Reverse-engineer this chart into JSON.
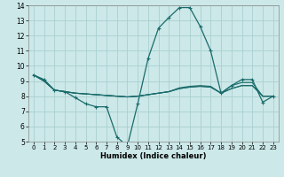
{
  "xlabel": "Humidex (Indice chaleur)",
  "bg_color": "#cce8e8",
  "grid_color": "#aacfcf",
  "line_color": "#1a6b6b",
  "xlim": [
    -0.5,
    23.5
  ],
  "ylim": [
    5,
    14
  ],
  "xticks": [
    0,
    1,
    2,
    3,
    4,
    5,
    6,
    7,
    8,
    9,
    10,
    11,
    12,
    13,
    14,
    15,
    16,
    17,
    18,
    19,
    20,
    21,
    22,
    23
  ],
  "yticks": [
    5,
    6,
    7,
    8,
    9,
    10,
    11,
    12,
    13,
    14
  ],
  "lines": [
    {
      "x": [
        0,
        1,
        2,
        3,
        4,
        5,
        6,
        7,
        8,
        9,
        10,
        11,
        12,
        13,
        14,
        15,
        16,
        17,
        18,
        19,
        20,
        21,
        22,
        23
      ],
      "y": [
        9.4,
        9.1,
        8.4,
        8.3,
        7.9,
        7.5,
        7.3,
        7.3,
        5.3,
        4.7,
        7.5,
        10.5,
        12.5,
        13.2,
        13.85,
        13.85,
        12.6,
        11.0,
        8.2,
        8.7,
        9.1,
        9.1,
        7.6,
        8.0
      ],
      "marker": true
    },
    {
      "x": [
        0,
        1,
        2,
        3,
        4,
        5,
        6,
        7,
        8,
        9,
        10,
        11,
        12,
        13,
        14,
        15,
        16,
        17,
        18,
        19,
        20,
        21,
        22,
        23
      ],
      "y": [
        9.4,
        9.0,
        8.4,
        8.3,
        8.2,
        8.15,
        8.1,
        8.05,
        8.0,
        7.95,
        8.0,
        8.1,
        8.2,
        8.3,
        8.5,
        8.6,
        8.65,
        8.6,
        8.2,
        8.5,
        8.7,
        8.7,
        8.0,
        8.0
      ],
      "marker": false
    },
    {
      "x": [
        0,
        1,
        2,
        3,
        4,
        5,
        6,
        7,
        8,
        9,
        10,
        11,
        12,
        13,
        14,
        15,
        16,
        17,
        18,
        19,
        20,
        21,
        22,
        23
      ],
      "y": [
        9.4,
        9.0,
        8.4,
        8.3,
        8.2,
        8.15,
        8.1,
        8.05,
        8.0,
        7.95,
        8.0,
        8.1,
        8.2,
        8.3,
        8.55,
        8.65,
        8.7,
        8.65,
        8.2,
        8.7,
        8.9,
        8.9,
        8.0,
        8.0
      ],
      "marker": false
    },
    {
      "x": [
        0,
        1,
        2,
        3,
        4,
        5,
        6,
        7,
        8,
        9,
        10,
        11,
        12,
        13,
        14,
        15,
        16,
        17,
        18,
        19,
        20,
        21,
        22,
        23
      ],
      "y": [
        9.4,
        9.0,
        8.4,
        8.3,
        8.2,
        8.15,
        8.1,
        8.05,
        8.0,
        7.95,
        8.0,
        8.1,
        8.2,
        8.3,
        8.5,
        8.6,
        8.65,
        8.6,
        8.2,
        8.5,
        8.7,
        8.7,
        8.0,
        8.0
      ],
      "marker": false
    }
  ]
}
